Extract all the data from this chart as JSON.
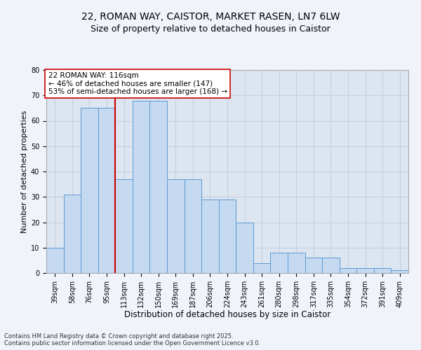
{
  "title_line1": "22, ROMAN WAY, CAISTOR, MARKET RASEN, LN7 6LW",
  "title_line2": "Size of property relative to detached houses in Caistor",
  "xlabel": "Distribution of detached houses by size in Caistor",
  "ylabel": "Number of detached properties",
  "categories": [
    "39sqm",
    "58sqm",
    "76sqm",
    "95sqm",
    "113sqm",
    "132sqm",
    "150sqm",
    "169sqm",
    "187sqm",
    "206sqm",
    "224sqm",
    "243sqm",
    "261sqm",
    "280sqm",
    "298sqm",
    "317sqm",
    "335sqm",
    "354sqm",
    "372sqm",
    "391sqm",
    "409sqm"
  ],
  "values": [
    10,
    31,
    65,
    65,
    37,
    68,
    68,
    37,
    37,
    29,
    29,
    20,
    4,
    8,
    8,
    6,
    6,
    2,
    2,
    2,
    1
  ],
  "bar_color": "#c5d9f0",
  "bar_edge_color": "#5b9bd5",
  "red_line_index": 4,
  "highlight_line_color": "#cc0000",
  "annotation_text": "22 ROMAN WAY: 116sqm\n← 46% of detached houses are smaller (147)\n53% of semi-detached houses are larger (168) →",
  "annotation_box_color": "#ffffff",
  "annotation_box_edge": "#cc0000",
  "annotation_fontsize": 7.5,
  "ylim": [
    0,
    80
  ],
  "yticks": [
    0,
    10,
    20,
    30,
    40,
    50,
    60,
    70,
    80
  ],
  "grid_color": "#c8d0e0",
  "plot_bg_color": "#dce5f0",
  "fig_bg_color": "#f0f4fa",
  "footer_text": "Contains HM Land Registry data © Crown copyright and database right 2025.\nContains public sector information licensed under the Open Government Licence v3.0.",
  "title_fontsize": 10,
  "subtitle_fontsize": 9,
  "xlabel_fontsize": 8.5,
  "ylabel_fontsize": 8,
  "tick_fontsize": 7,
  "footer_fontsize": 6
}
